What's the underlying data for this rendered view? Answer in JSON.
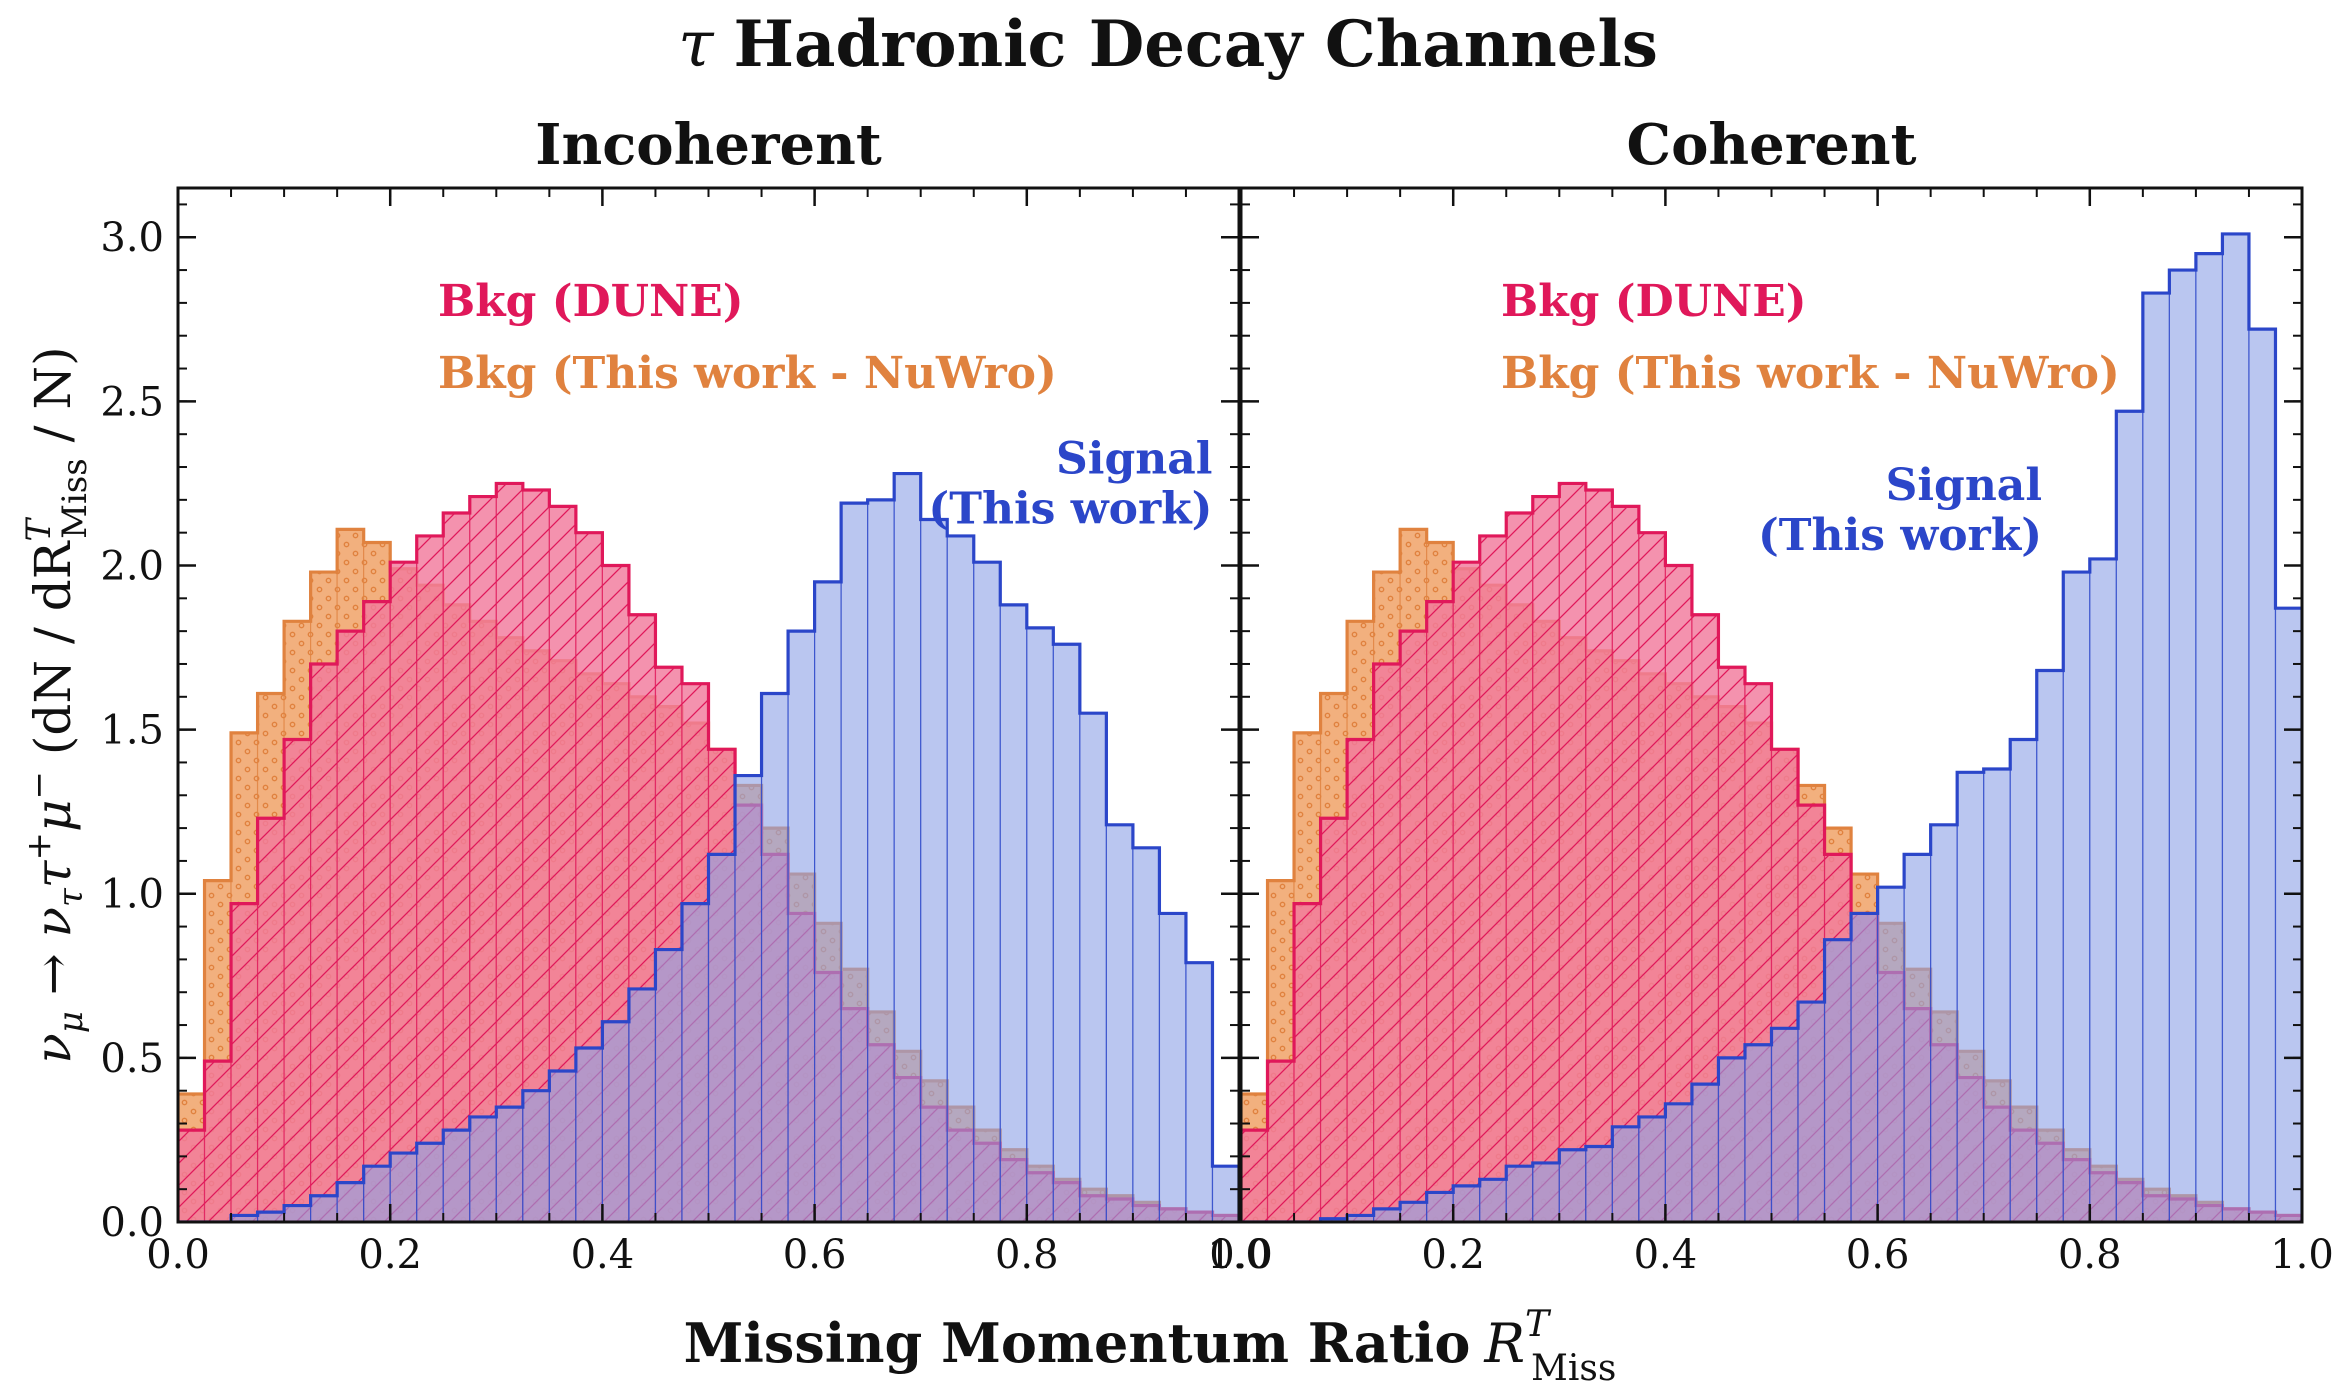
{
  "figure": {
    "title_symbol": "τ",
    "title_text": "Hadronic Decay Channels",
    "xlabel_text": "Missing Momentum Ratio",
    "xlabel_symbol": "R",
    "xlabel_sup": "T",
    "xlabel_sub": "Miss",
    "ylabel": {
      "nu1": "ν",
      "nu1_sub": "μ",
      "arrow": " → ",
      "nu2": "ν",
      "nu2_sub": "τ",
      "tau": "τ",
      "tau_sup": "+",
      "mu": "μ",
      "mu_sup": "−",
      "open": " (dN / dR",
      "r_sup": "T",
      "r_sub": "Miss",
      "close": " / N)"
    },
    "colors": {
      "signal_fill": "#8fa3e6",
      "signal_edge": "#2b46c9",
      "dune_fill": "#f27a9c",
      "dune_edge": "#e0185a",
      "nuwro_fill": "#f2b07e",
      "nuwro_edge": "#e0823f"
    }
  },
  "chart_data": [
    {
      "type": "bar",
      "title": "Incoherent",
      "xlim": [
        0,
        1
      ],
      "ylim": [
        0,
        3.15
      ],
      "xticks": [
        "0.0",
        "0.2",
        "0.4",
        "0.6",
        "0.8",
        "1.0"
      ],
      "yticks": [
        "0.0",
        "0.5",
        "1.0",
        "1.5",
        "2.0",
        "2.5",
        "3.0"
      ],
      "bin_edges_start": 0.0,
      "bin_width": 0.025,
      "series": [
        {
          "name": "Bkg (This work - NuWro)",
          "label_lines": [
            "Bkg (This work - NuWro)"
          ],
          "label_anchor": [
            0.245,
            2.54
          ],
          "color": "#e0823f",
          "values": [
            0.39,
            1.04,
            1.49,
            1.61,
            1.83,
            1.98,
            2.11,
            2.07,
            1.99,
            1.94,
            1.88,
            1.83,
            1.78,
            1.74,
            1.71,
            1.67,
            1.64,
            1.6,
            1.57,
            1.52,
            1.44,
            1.33,
            1.2,
            1.06,
            0.91,
            0.77,
            0.64,
            0.52,
            0.43,
            0.35,
            0.28,
            0.22,
            0.17,
            0.13,
            0.1,
            0.08,
            0.06,
            0.04,
            0.03,
            0.02
          ]
        },
        {
          "name": "Bkg (DUNE)",
          "label_lines": [
            "Bkg (DUNE)"
          ],
          "label_anchor": [
            0.245,
            2.76
          ],
          "color": "#e0185a",
          "values": [
            0.28,
            0.49,
            0.97,
            1.23,
            1.47,
            1.7,
            1.8,
            1.89,
            2.01,
            2.09,
            2.16,
            2.21,
            2.25,
            2.23,
            2.18,
            2.1,
            2.0,
            1.85,
            1.69,
            1.64,
            1.44,
            1.27,
            1.12,
            0.94,
            0.76,
            0.65,
            0.54,
            0.44,
            0.35,
            0.28,
            0.24,
            0.19,
            0.15,
            0.12,
            0.08,
            0.07,
            0.05,
            0.04,
            0.03,
            0.02
          ]
        },
        {
          "name": "Signal (This work)",
          "label_lines": [
            "Signal",
            "(This work)"
          ],
          "label_anchor": [
            0.975,
            2.28
          ],
          "color": "#2b46c9",
          "values": [
            0.0,
            0.0,
            0.02,
            0.03,
            0.05,
            0.08,
            0.12,
            0.17,
            0.21,
            0.24,
            0.28,
            0.32,
            0.35,
            0.4,
            0.46,
            0.53,
            0.61,
            0.71,
            0.83,
            0.97,
            1.12,
            1.36,
            1.61,
            1.8,
            1.95,
            2.19,
            2.2,
            2.28,
            2.14,
            2.09,
            2.01,
            1.88,
            1.81,
            1.76,
            1.55,
            1.21,
            1.14,
            0.94,
            0.79,
            0.17
          ]
        }
      ]
    },
    {
      "type": "bar",
      "title": "Coherent",
      "xlim": [
        0,
        1
      ],
      "ylim": [
        0,
        3.15
      ],
      "xticks": [
        "0.0",
        "0.2",
        "0.4",
        "0.6",
        "0.8",
        "1.0"
      ],
      "yticks": [
        "0.0",
        "0.5",
        "1.0",
        "1.5",
        "2.0",
        "2.5",
        "3.0"
      ],
      "bin_edges_start": 0.0,
      "bin_width": 0.025,
      "series": [
        {
          "name": "Bkg (This work - NuWro)",
          "label_lines": [
            "Bkg (This work - NuWro)"
          ],
          "label_anchor": [
            0.245,
            2.54
          ],
          "color": "#e0823f",
          "values": [
            0.39,
            1.04,
            1.49,
            1.61,
            1.83,
            1.98,
            2.11,
            2.07,
            1.99,
            1.94,
            1.88,
            1.83,
            1.78,
            1.74,
            1.71,
            1.67,
            1.64,
            1.6,
            1.57,
            1.52,
            1.44,
            1.33,
            1.2,
            1.06,
            0.91,
            0.77,
            0.64,
            0.52,
            0.43,
            0.35,
            0.28,
            0.22,
            0.17,
            0.13,
            0.1,
            0.08,
            0.06,
            0.04,
            0.03,
            0.02
          ]
        },
        {
          "name": "Bkg (DUNE)",
          "label_lines": [
            "Bkg (DUNE)"
          ],
          "label_anchor": [
            0.245,
            2.76
          ],
          "color": "#e0185a",
          "values": [
            0.28,
            0.49,
            0.97,
            1.23,
            1.47,
            1.7,
            1.8,
            1.89,
            2.01,
            2.09,
            2.16,
            2.21,
            2.25,
            2.23,
            2.18,
            2.1,
            2.0,
            1.85,
            1.69,
            1.64,
            1.44,
            1.27,
            1.12,
            0.94,
            0.76,
            0.65,
            0.54,
            0.44,
            0.35,
            0.28,
            0.24,
            0.19,
            0.15,
            0.12,
            0.08,
            0.07,
            0.05,
            0.04,
            0.03,
            0.02
          ]
        },
        {
          "name": "Signal (This work)",
          "label_lines": [
            "Signal",
            "(This work)"
          ],
          "label_anchor": [
            0.755,
            2.2
          ],
          "color": "#2b46c9",
          "values": [
            0.0,
            0.0,
            0.0,
            0.01,
            0.02,
            0.04,
            0.06,
            0.09,
            0.11,
            0.13,
            0.17,
            0.18,
            0.22,
            0.23,
            0.29,
            0.32,
            0.36,
            0.42,
            0.5,
            0.54,
            0.59,
            0.67,
            0.86,
            0.94,
            1.02,
            1.12,
            1.21,
            1.37,
            1.38,
            1.47,
            1.68,
            1.98,
            2.02,
            2.47,
            2.83,
            2.9,
            2.95,
            3.01,
            2.72,
            1.87
          ]
        }
      ]
    }
  ]
}
